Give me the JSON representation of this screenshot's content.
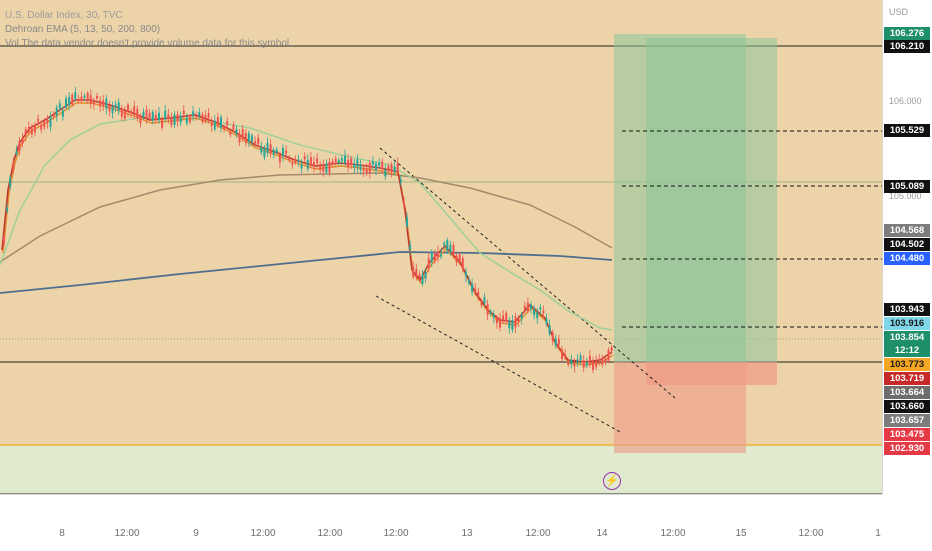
{
  "header": {
    "title": "U.S. Dollar Index, 30, TVC",
    "indicator": "Dehroan EMA (5, 13, 50, 200, 800)",
    "warning": "Vol  The data vendor doesn't provide volume data for this symbol."
  },
  "price_axis": {
    "currency": "USD",
    "ticks": [
      "106.000",
      "105.000"
    ],
    "labels": [
      {
        "value": "106.276",
        "bg": "#1e8f6a"
      },
      {
        "value": "106.210",
        "bg": "#111111"
      },
      {
        "value": "105.529",
        "bg": "#111111"
      },
      {
        "value": "105.089",
        "bg": "#111111"
      },
      {
        "value": "104.568",
        "bg": "#7c7c7c"
      },
      {
        "value": "104.502",
        "bg": "#111111"
      },
      {
        "value": "104.480",
        "bg": "#2962ff"
      },
      {
        "value": "103.943",
        "bg": "#111111"
      },
      {
        "value": "103.916",
        "bg": "#7fd6e8"
      },
      {
        "value": "103.854",
        "bg": "#1e8f6a"
      },
      {
        "value": "12:12",
        "bg": "#1e8f6a"
      },
      {
        "value": "103.773",
        "bg": "#f5a623"
      },
      {
        "value": "103.719",
        "bg": "#c62828"
      },
      {
        "value": "103.664",
        "bg": "#6d6d6d"
      },
      {
        "value": "103.660",
        "bg": "#111111"
      },
      {
        "value": "103.657",
        "bg": "#7c7c7c"
      },
      {
        "value": "103.475",
        "bg": "#e53945"
      },
      {
        "value": "102.930",
        "bg": "#e53945"
      }
    ]
  },
  "time_axis": [
    "8",
    "12:00",
    "9",
    "12:00",
    "12:00",
    "12:00",
    "13",
    "12:00",
    "14",
    "12:00",
    "15",
    "12:00",
    "1"
  ],
  "colors": {
    "background": "#ecd4a8",
    "profit_zone": "#8cc79a",
    "loss_zone": "#f09a86",
    "bull_candle": "#26a69a",
    "bear_candle": "#ef5350",
    "ema_fast": "#e38b2c",
    "ema_mid": "#c0392b",
    "ema_50": "#9ccf98",
    "ema_200": "#a6896a",
    "ema_800": "#4d6f8c"
  },
  "icons": {
    "alert": "lightning-icon"
  }
}
